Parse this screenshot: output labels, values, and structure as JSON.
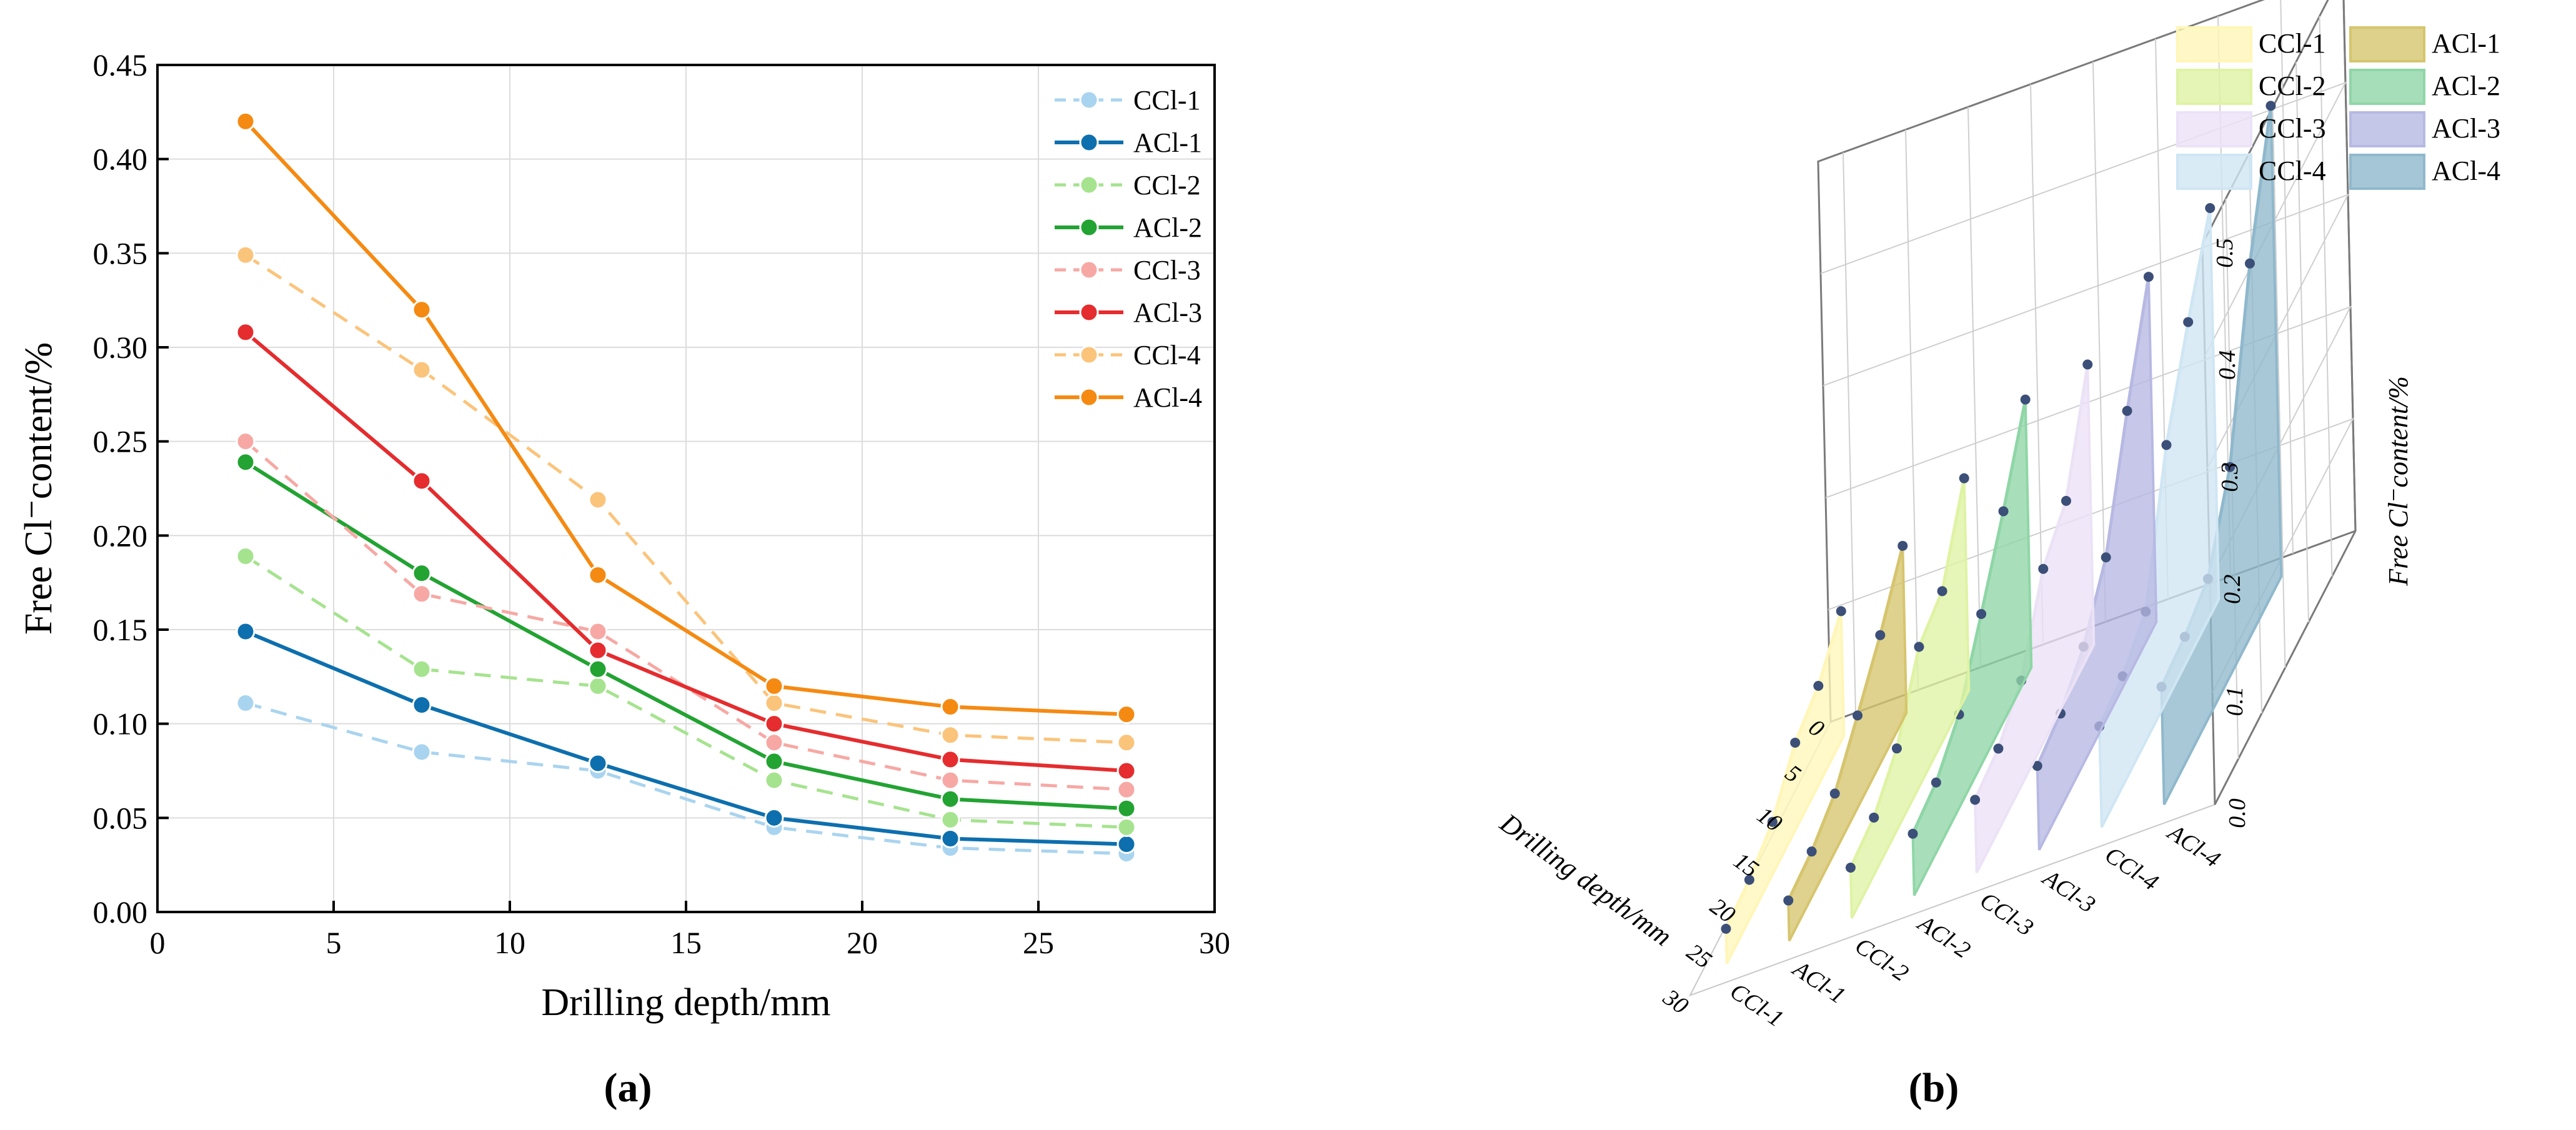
{
  "figure": {
    "panel_a_caption": "(a)",
    "panel_b_caption": "(b)"
  },
  "colors": {
    "CCl-1": "#a9d4ef",
    "ACl-1": "#0d6fae",
    "CCl-2": "#a6e38f",
    "ACl-2": "#22a332",
    "CCl-3": "#f7a8a4",
    "ACl-3": "#e52c2e",
    "CCl-4": "#fbc47b",
    "ACl-4": "#f58a12",
    "3d_CCl-1": "#fff6b8",
    "3d_ACl-1": "#d6c56e",
    "3d_CCl-2": "#dff3a4",
    "3d_ACl-2": "#8fd6a6",
    "3d_CCl-3": "#ece2f6",
    "3d_ACl-3": "#b7b9e3",
    "3d_CCl-4": "#cfe6f3",
    "3d_ACl-4": "#8fb8cc"
  },
  "chart_data": [
    {
      "type": "line",
      "caption": "(a)",
      "xlabel": "Drilling depth/mm",
      "ylabel": "Free Cl⁻content/%",
      "xlim": [
        0,
        30
      ],
      "ylim": [
        0,
        0.45
      ],
      "xticks": [
        "0",
        "5",
        "10",
        "15",
        "20",
        "25",
        "30"
      ],
      "yticks": [
        "0.00",
        "0.05",
        "0.10",
        "0.15",
        "0.20",
        "0.25",
        "0.30",
        "0.35",
        "0.40",
        "0.45"
      ],
      "grid": true,
      "legend_position": "top-right",
      "x": [
        2.5,
        7.5,
        12.5,
        17.5,
        22.5,
        27.5
      ],
      "series": [
        {
          "name": "CCl-1",
          "style": "dashed",
          "values": [
            0.111,
            0.085,
            0.075,
            0.045,
            0.034,
            0.031
          ]
        },
        {
          "name": "ACl-1",
          "style": "solid",
          "values": [
            0.149,
            0.11,
            0.079,
            0.05,
            0.039,
            0.036
          ]
        },
        {
          "name": "CCl-2",
          "style": "dashed",
          "values": [
            0.189,
            0.129,
            0.12,
            0.07,
            0.049,
            0.045
          ]
        },
        {
          "name": "ACl-2",
          "style": "solid",
          "values": [
            0.239,
            0.18,
            0.129,
            0.08,
            0.06,
            0.055
          ]
        },
        {
          "name": "CCl-3",
          "style": "dashed",
          "values": [
            0.25,
            0.169,
            0.149,
            0.09,
            0.07,
            0.065
          ]
        },
        {
          "name": "ACl-3",
          "style": "solid",
          "values": [
            0.308,
            0.229,
            0.139,
            0.1,
            0.081,
            0.075
          ]
        },
        {
          "name": "CCl-4",
          "style": "dashed",
          "values": [
            0.349,
            0.288,
            0.219,
            0.111,
            0.094,
            0.09
          ]
        },
        {
          "name": "ACl-4",
          "style": "solid",
          "values": [
            0.42,
            0.32,
            0.179,
            0.12,
            0.109,
            0.105
          ]
        }
      ]
    },
    {
      "type": "area",
      "caption": "(b)",
      "projection": "3d",
      "xlabel": "Drilling depth/mm",
      "zlabel": "Free Cl⁻content/%",
      "xlim": [
        0,
        30
      ],
      "zlim": [
        0,
        0.5
      ],
      "xticks": [
        "0",
        "5",
        "10",
        "15",
        "20",
        "25",
        "30"
      ],
      "zticks": [
        "0.0",
        "0.1",
        "0.2",
        "0.3",
        "0.4",
        "0.5"
      ],
      "categories": [
        "CCl-1",
        "ACl-1",
        "CCl-2",
        "ACl-2",
        "CCl-3",
        "ACl-3",
        "CCl-4",
        "ACl-4"
      ],
      "legend_position": "top-right",
      "legend_columns": [
        [
          "CCl-1",
          "CCl-2",
          "CCl-3",
          "CCl-4"
        ],
        [
          "ACl-1",
          "ACl-2",
          "ACl-3",
          "ACl-4"
        ]
      ],
      "x": [
        2.5,
        7.5,
        12.5,
        17.5,
        22.5,
        27.5
      ],
      "series": [
        {
          "name": "CCl-1",
          "values": [
            0.111,
            0.085,
            0.075,
            0.045,
            0.034,
            0.031
          ]
        },
        {
          "name": "ACl-1",
          "values": [
            0.149,
            0.11,
            0.079,
            0.05,
            0.039,
            0.036
          ]
        },
        {
          "name": "CCl-2",
          "values": [
            0.189,
            0.129,
            0.12,
            0.07,
            0.049,
            0.045
          ]
        },
        {
          "name": "ACl-2",
          "values": [
            0.239,
            0.18,
            0.129,
            0.08,
            0.06,
            0.055
          ]
        },
        {
          "name": "CCl-3",
          "values": [
            0.25,
            0.169,
            0.149,
            0.09,
            0.07,
            0.065
          ]
        },
        {
          "name": "ACl-3",
          "values": [
            0.308,
            0.229,
            0.139,
            0.1,
            0.081,
            0.075
          ]
        },
        {
          "name": "CCl-4",
          "values": [
            0.349,
            0.288,
            0.219,
            0.111,
            0.094,
            0.09
          ]
        },
        {
          "name": "ACl-4",
          "values": [
            0.42,
            0.32,
            0.179,
            0.12,
            0.109,
            0.105
          ]
        }
      ]
    }
  ]
}
